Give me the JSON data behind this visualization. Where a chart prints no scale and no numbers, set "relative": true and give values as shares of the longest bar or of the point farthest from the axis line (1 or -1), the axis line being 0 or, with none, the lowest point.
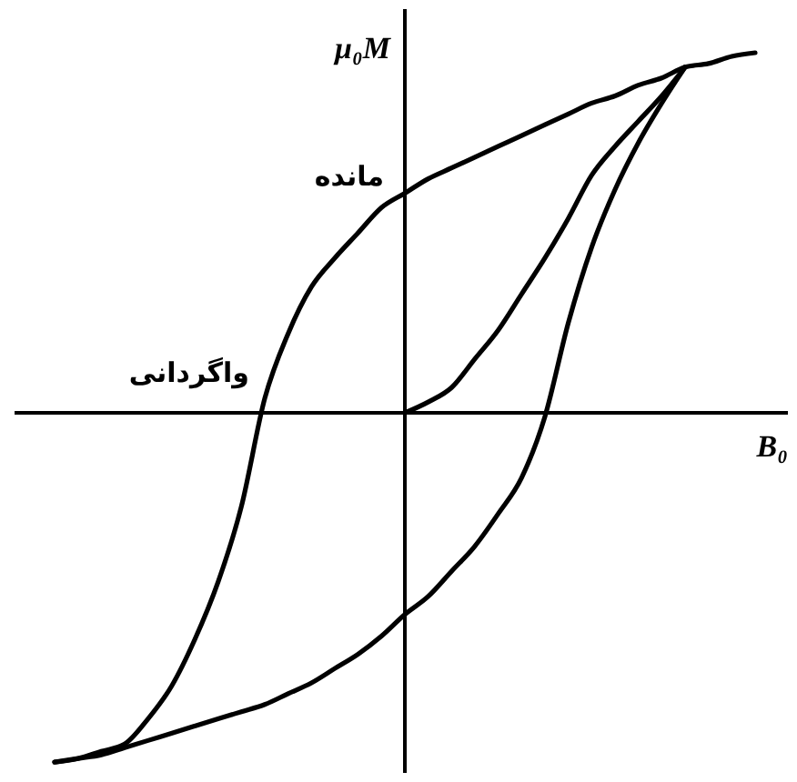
{
  "chart_data": {
    "type": "line",
    "relative": true,
    "xlabel": "B₀",
    "ylabel": "μ₀M",
    "line_style": "solid",
    "categories": [
      null,
      null,
      null,
      null,
      null,
      null,
      null,
      null,
      null,
      null,
      null,
      null,
      null,
      null,
      null,
      null,
      null,
      null,
      null,
      null,
      null,
      null,
      null,
      null,
      null,
      null,
      null,
      null,
      null,
      null,
      null
    ],
    "annotations": [
      "مانده",
      "واگردانی"
    ],
    "series": [
      {
        "color": "#000000",
        "values": [
          -0.97,
          -0.96,
          -0.94,
          -0.92,
          -0.85,
          -0.76,
          -0.63,
          -0.47,
          -0.26,
          0.04,
          0.22,
          0.35,
          0.43,
          0.5,
          0.57,
          0.61,
          0.65,
          0.68,
          0.71,
          0.74,
          0.77,
          0.8,
          0.83,
          0.86,
          0.88,
          0.91,
          0.93,
          0.96,
          0.97,
          0.99,
          1.0
        ]
      },
      {
        "color": "#000000",
        "values": [
          -0.97,
          -0.96,
          -0.95,
          -0.93,
          -0.91,
          -0.89,
          -0.87,
          -0.85,
          -0.83,
          -0.81,
          -0.78,
          -0.75,
          -0.71,
          -0.67,
          -0.62,
          -0.56,
          -0.51,
          -0.44,
          -0.37,
          -0.28,
          -0.18,
          -0.01,
          0.25,
          0.46,
          0.62,
          0.75,
          0.86,
          0.96,
          null,
          null,
          null
        ]
      },
      {
        "color": "#000000",
        "values": [
          null,
          null,
          null,
          null,
          null,
          null,
          null,
          null,
          null,
          null,
          null,
          null,
          null,
          null,
          null,
          0.0,
          0.03,
          0.07,
          0.15,
          0.23,
          0.33,
          0.43,
          0.54,
          0.66,
          0.74,
          0.81,
          0.88,
          0.96,
          null,
          null,
          null
        ]
      }
    ]
  }
}
